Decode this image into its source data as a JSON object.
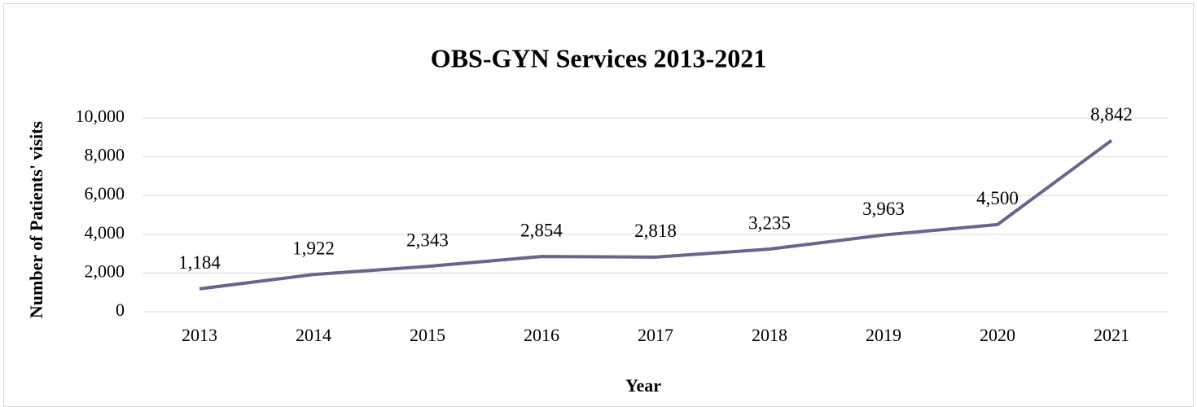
{
  "chart_data": {
    "type": "line",
    "title": "OBS-GYN Services 2013-2021",
    "x_label": "Year",
    "y_label": "Number of Patients' visits",
    "categories": [
      "2013",
      "2014",
      "2015",
      "2016",
      "2017",
      "2018",
      "2019",
      "2020",
      "2021"
    ],
    "series": [
      {
        "name": "Number of Patients' visits",
        "color": "#65658f",
        "values": [
          1184,
          1922,
          2343,
          2854,
          2818,
          3235,
          3963,
          4500,
          8842
        ],
        "value_labels": [
          "1,184",
          "1,922",
          "2,343",
          "2,854",
          "2,818",
          "3,235",
          "3,963",
          "4,500",
          "8,842"
        ]
      }
    ],
    "ylim": [
      0,
      10000
    ],
    "yticks": [
      0,
      {
        "value": 2000,
        "label": "2,000"
      },
      {
        "value": 4000,
        "label": "4,000"
      },
      {
        "value": 6000,
        "label": "6,000"
      },
      {
        "value": 8000,
        "label": "8,000"
      },
      {
        "value": 10000,
        "label": "10,000"
      }
    ],
    "grid": true
  }
}
